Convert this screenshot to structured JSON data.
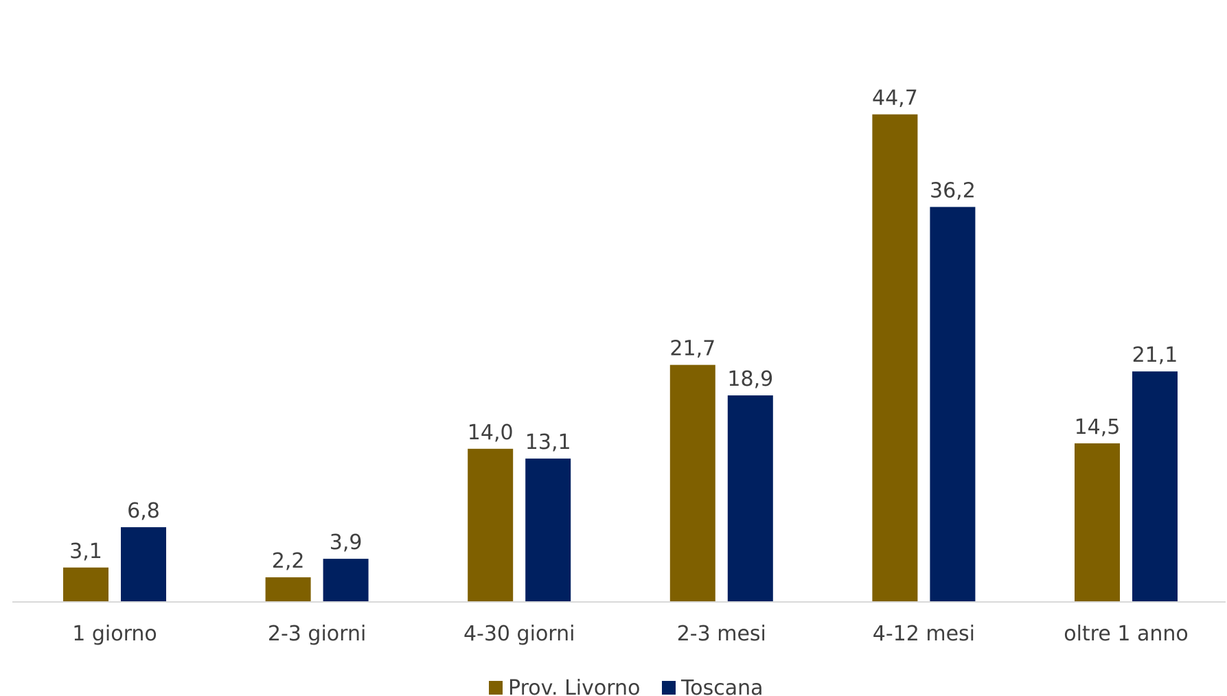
{
  "chart_data": {
    "type": "bar",
    "title": "",
    "xlabel": "",
    "ylabel": "",
    "categories": [
      "1 giorno",
      "2-3 giorni",
      "4-30 giorni",
      "2-3 mesi",
      "4-12 mesi",
      "oltre 1 anno"
    ],
    "series": [
      {
        "name": "Prov. Livorno",
        "color": "#7f6000",
        "values": [
          3.1,
          2.2,
          14.0,
          21.7,
          44.7,
          14.5
        ],
        "labels": [
          "3,1",
          "2,2",
          "14,0",
          "21,7",
          "44,7",
          "14,5"
        ]
      },
      {
        "name": "Toscana",
        "color": "#002060",
        "values": [
          6.8,
          3.9,
          13.1,
          18.9,
          36.2,
          21.1
        ],
        "labels": [
          "6,8",
          "3,9",
          "13,1",
          "18,9",
          "36,2",
          "21,1"
        ]
      }
    ],
    "ylim": [
      0,
      48
    ],
    "grid": false,
    "legend": "bottom-center",
    "axis_color": "#d9d9d9"
  }
}
